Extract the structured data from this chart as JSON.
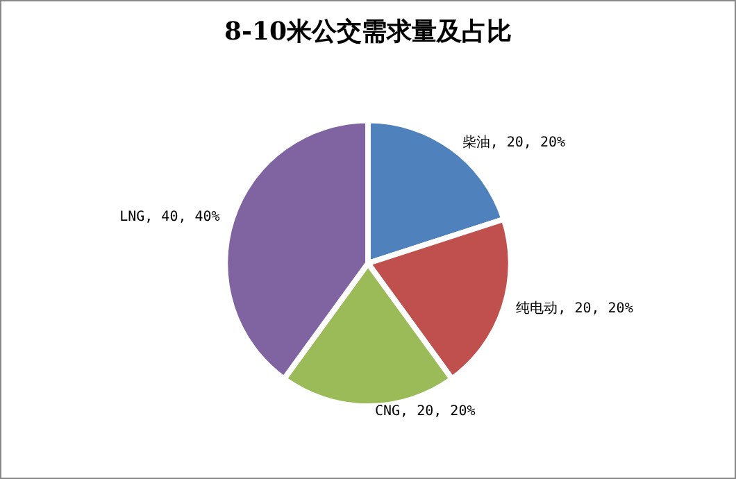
{
  "chart_data": {
    "type": "pie",
    "title": "8-10米公交需求量及占比",
    "categories": [
      "柴油",
      "纯电动",
      "CNG",
      "LNG"
    ],
    "values": [
      20,
      20,
      20,
      40
    ],
    "colors": [
      "#4f81bd",
      "#c0504d",
      "#9bbb59",
      "#8064a2"
    ],
    "value_labels": [
      "20, 20%",
      "20, 20%",
      "20, 20%",
      "40, 40%"
    ],
    "legend": false
  }
}
